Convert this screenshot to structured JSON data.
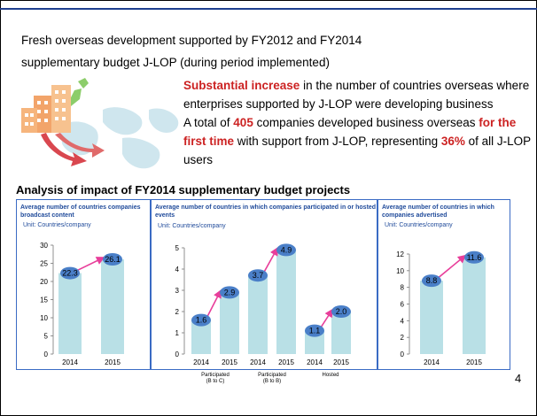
{
  "intro": {
    "line1": "Fresh overseas development supported by FY2012 and FY2014",
    "line2": "supplementary budget J-LOP (during period implemented)"
  },
  "bullet1": {
    "highlight": "Substantial increase",
    "rest": " in the number of countries overseas where enterprises supported by J-LOP were developing business"
  },
  "bullet2": {
    "part1": "A total of ",
    "num": "405",
    "part2": " companies developed business overseas ",
    "highlight": "for the first time",
    "part3": " with support from J-LOP, representing ",
    "pct": "36%",
    "part4": " of all J-LOP users"
  },
  "section_title": "Analysis of impact of FY2014 supplementary budget projects",
  "page_number": "4",
  "colors": {
    "bar": "#b9e0e6",
    "bubble": "#4a7fc8",
    "arrow": "#e83e9a",
    "title_blue": "#1f4a9a",
    "accent_red": "#cc2222"
  },
  "chart_data": [
    {
      "type": "bar",
      "title": "Average number of countries companies broadcast content",
      "unit": "Unit: Countries/company",
      "categories": [
        "2014",
        "2015"
      ],
      "values": [
        22.3,
        26.1
      ],
      "data_labels": [
        "22.3",
        "26.1"
      ],
      "ylim": [
        0,
        30
      ],
      "yticks": [
        "0",
        "5",
        "10",
        "15",
        "20",
        "25",
        "30"
      ]
    },
    {
      "type": "bar",
      "title": "Average number of countries in which companies participated in or hosted events",
      "unit": "Unit: Countries/company",
      "categories": [
        "2014",
        "2015",
        "2014",
        "2015",
        "2014",
        "2015"
      ],
      "values": [
        1.6,
        2.9,
        3.7,
        4.9,
        1.1,
        2.0
      ],
      "data_labels": [
        "1.6",
        "2.9",
        "3.7",
        "4.9",
        "1.1",
        "2.0"
      ],
      "groups": [
        {
          "label_line1": "Participated",
          "label_line2": "(B to C)"
        },
        {
          "label_line1": "Participated",
          "label_line2": "(B to B)"
        },
        {
          "label_line1": "Hosted",
          "label_line2": ""
        }
      ],
      "ylim": [
        0,
        5
      ],
      "yticks": [
        "0",
        "1",
        "2",
        "3",
        "4",
        "5"
      ]
    },
    {
      "type": "bar",
      "title": "Average number of countries in which companies advertised",
      "unit": "Unit: Countries/company",
      "categories": [
        "2014",
        "2015"
      ],
      "values": [
        8.8,
        11.6
      ],
      "data_labels": [
        "8.8",
        "11.6"
      ],
      "ylim": [
        0,
        12
      ],
      "yticks": [
        "0",
        "2",
        "4",
        "6",
        "8",
        "10",
        "12"
      ]
    }
  ]
}
